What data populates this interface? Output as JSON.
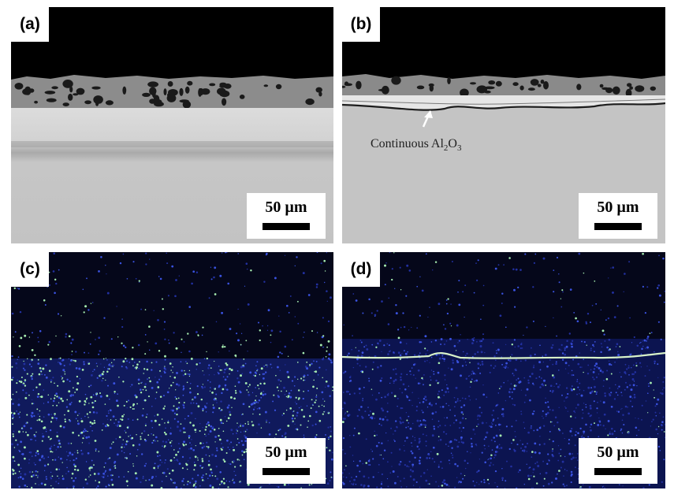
{
  "panels": {
    "a": {
      "label": "(a)",
      "scale": "50 µm"
    },
    "b": {
      "label": "(b)",
      "scale": "50 µm",
      "annotation": {
        "prefix": "Continuous Al",
        "sub1": "2",
        "mid": "O",
        "sub2": "3"
      }
    },
    "c": {
      "label": "(c)",
      "scale": "50 µm"
    },
    "d": {
      "label": "(d)",
      "scale": "50 µm"
    }
  },
  "colors": {
    "background_dark": "#000000",
    "substrate_gray": "#c4c4c4",
    "coating_gray": "#8a8a8a",
    "map_dark": "#06081c",
    "map_blue": "#1e2aa8",
    "map_green": "#9fe8a0"
  }
}
